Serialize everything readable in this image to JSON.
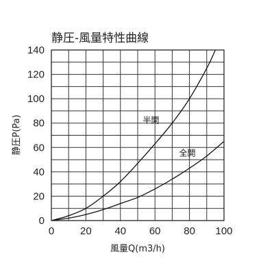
{
  "chart_data": {
    "type": "line",
    "title": "静圧-風量特性曲線",
    "xlabel": "風量Q(m3/h)",
    "ylabel": "静圧P(Pa)",
    "xlim": [
      0,
      100
    ],
    "ylim": [
      0,
      140
    ],
    "grid": true,
    "x_ticks": [
      "0",
      "20",
      "40",
      "60",
      "80",
      "100"
    ],
    "y_ticks": [
      "0",
      "20",
      "40",
      "60",
      "80",
      "100",
      "120",
      "140"
    ],
    "series": [
      {
        "name": "半開",
        "x": [
          0,
          10,
          20,
          30,
          40,
          50,
          60,
          70,
          80,
          90,
          95
        ],
        "y": [
          0,
          4,
          10,
          20,
          32,
          47,
          63,
          80,
          100,
          125,
          140
        ]
      },
      {
        "name": "全開",
        "x": [
          0,
          10,
          20,
          30,
          40,
          50,
          60,
          70,
          80,
          90,
          100
        ],
        "y": [
          0,
          2,
          5,
          9,
          14,
          19,
          26,
          34,
          43,
          53,
          65
        ]
      }
    ]
  }
}
